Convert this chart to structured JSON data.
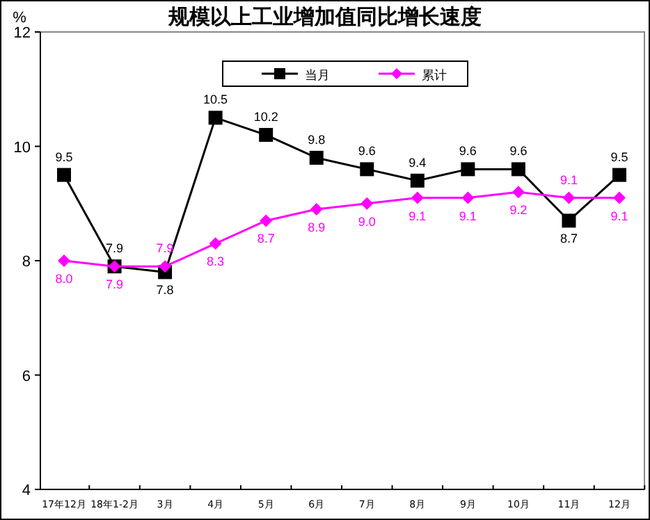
{
  "chart_data": {
    "type": "line",
    "title": "规模以上工业增加值同比增长速度",
    "ylabel": "%",
    "categories": [
      "17年12月",
      "18年1-2月",
      "3月",
      "4月",
      "5月",
      "6月",
      "7月",
      "8月",
      "9月",
      "10月",
      "11月",
      "12月"
    ],
    "series": [
      {
        "name": "当月",
        "color": "#000000",
        "marker": "square",
        "values": [
          9.5,
          7.9,
          7.8,
          10.5,
          10.2,
          9.8,
          9.6,
          9.4,
          9.6,
          9.6,
          8.7,
          9.5
        ],
        "value_labels": [
          "9.5",
          "7.9",
          "7.8",
          "10.5",
          "10.2",
          "9.8",
          "9.6",
          "9.4",
          "9.6",
          "9.6",
          "8.7",
          "9.5"
        ]
      },
      {
        "name": "累计",
        "color": "#ff00ff",
        "marker": "diamond",
        "values": [
          8.0,
          7.9,
          7.9,
          8.3,
          8.7,
          8.9,
          9.0,
          9.1,
          9.1,
          9.2,
          9.1,
          9.1
        ],
        "value_labels": [
          "8.0",
          "7.9",
          "7.9",
          "8.3",
          "8.7",
          "8.9",
          "9.0",
          "9.1",
          "9.1",
          "9.2",
          "9.1",
          "9.1"
        ]
      }
    ],
    "ylim": [
      4,
      12
    ],
    "yticks": [
      4,
      6,
      8,
      10,
      12
    ],
    "grid": false,
    "legend": "top",
    "line_style": "solid"
  }
}
